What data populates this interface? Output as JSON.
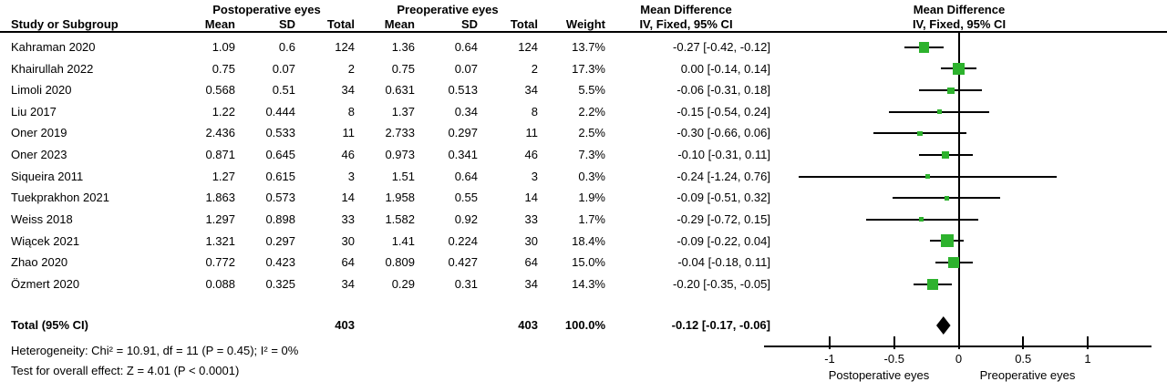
{
  "header": {
    "study_col": "Study or Subgroup",
    "group1": "Postoperative eyes",
    "group2": "Preoperative eyes",
    "mean": "Mean",
    "sd": "SD",
    "total": "Total",
    "weight": "Weight",
    "md_title": "Mean Difference",
    "md_sub": "IV, Fixed, 95% CI",
    "plot_title": "Mean Difference",
    "plot_sub": "IV, Fixed, 95% CI"
  },
  "studies": [
    {
      "name": "Kahraman 2020",
      "post_mean": "1.09",
      "post_sd": "0.6",
      "post_total": "124",
      "pre_mean": "1.36",
      "pre_sd": "0.64",
      "pre_total": "124",
      "weight": "13.7%",
      "md_text": "-0.27 [-0.42, -0.12]",
      "md": -0.27,
      "ci_low": -0.42,
      "ci_high": -0.12,
      "weight_value": 13.7
    },
    {
      "name": "Khairullah 2022",
      "post_mean": "0.75",
      "post_sd": "0.07",
      "post_total": "2",
      "pre_mean": "0.75",
      "pre_sd": "0.07",
      "pre_total": "2",
      "weight": "17.3%",
      "md_text": "0.00 [-0.14, 0.14]",
      "md": 0.0,
      "ci_low": -0.14,
      "ci_high": 0.14,
      "weight_value": 17.3
    },
    {
      "name": "Limoli 2020",
      "post_mean": "0.568",
      "post_sd": "0.51",
      "post_total": "34",
      "pre_mean": "0.631",
      "pre_sd": "0.513",
      "pre_total": "34",
      "weight": "5.5%",
      "md_text": "-0.06 [-0.31, 0.18]",
      "md": -0.06,
      "ci_low": -0.31,
      "ci_high": 0.18,
      "weight_value": 5.5
    },
    {
      "name": "Liu 2017",
      "post_mean": "1.22",
      "post_sd": "0.444",
      "post_total": "8",
      "pre_mean": "1.37",
      "pre_sd": "0.34",
      "pre_total": "8",
      "weight": "2.2%",
      "md_text": "-0.15 [-0.54, 0.24]",
      "md": -0.15,
      "ci_low": -0.54,
      "ci_high": 0.24,
      "weight_value": 2.2
    },
    {
      "name": "Oner 2019",
      "post_mean": "2.436",
      "post_sd": "0.533",
      "post_total": "11",
      "pre_mean": "2.733",
      "pre_sd": "0.297",
      "pre_total": "11",
      "weight": "2.5%",
      "md_text": "-0.30 [-0.66, 0.06]",
      "md": -0.3,
      "ci_low": -0.66,
      "ci_high": 0.06,
      "weight_value": 2.5
    },
    {
      "name": "Oner 2023",
      "post_mean": "0.871",
      "post_sd": "0.645",
      "post_total": "46",
      "pre_mean": "0.973",
      "pre_sd": "0.341",
      "pre_total": "46",
      "weight": "7.3%",
      "md_text": "-0.10 [-0.31, 0.11]",
      "md": -0.1,
      "ci_low": -0.31,
      "ci_high": 0.11,
      "weight_value": 7.3
    },
    {
      "name": "Siqueira 2011",
      "post_mean": "1.27",
      "post_sd": "0.615",
      "post_total": "3",
      "pre_mean": "1.51",
      "pre_sd": "0.64",
      "pre_total": "3",
      "weight": "0.3%",
      "md_text": "-0.24 [-1.24, 0.76]",
      "md": -0.24,
      "ci_low": -1.24,
      "ci_high": 0.76,
      "weight_value": 0.3
    },
    {
      "name": "Tuekprakhon 2021",
      "post_mean": "1.863",
      "post_sd": "0.573",
      "post_total": "14",
      "pre_mean": "1.958",
      "pre_sd": "0.55",
      "pre_total": "14",
      "weight": "1.9%",
      "md_text": "-0.09 [-0.51, 0.32]",
      "md": -0.09,
      "ci_low": -0.51,
      "ci_high": 0.32,
      "weight_value": 1.9
    },
    {
      "name": "Weiss 2018",
      "post_mean": "1.297",
      "post_sd": "0.898",
      "post_total": "33",
      "pre_mean": "1.582",
      "pre_sd": "0.92",
      "pre_total": "33",
      "weight": "1.7%",
      "md_text": "-0.29 [-0.72, 0.15]",
      "md": -0.29,
      "ci_low": -0.72,
      "ci_high": 0.15,
      "weight_value": 1.7
    },
    {
      "name": "Wiącek 2021",
      "post_mean": "1.321",
      "post_sd": "0.297",
      "post_total": "30",
      "pre_mean": "1.41",
      "pre_sd": "0.224",
      "pre_total": "30",
      "weight": "18.4%",
      "md_text": "-0.09 [-0.22, 0.04]",
      "md": -0.09,
      "ci_low": -0.22,
      "ci_high": 0.04,
      "weight_value": 18.4
    },
    {
      "name": "Zhao 2020",
      "post_mean": "0.772",
      "post_sd": "0.423",
      "post_total": "64",
      "pre_mean": "0.809",
      "pre_sd": "0.427",
      "pre_total": "64",
      "weight": "15.0%",
      "md_text": "-0.04 [-0.18, 0.11]",
      "md": -0.04,
      "ci_low": -0.18,
      "ci_high": 0.11,
      "weight_value": 15.0
    },
    {
      "name": "Özmert 2020",
      "post_mean": "0.088",
      "post_sd": "0.325",
      "post_total": "34",
      "pre_mean": "0.29",
      "pre_sd": "0.31",
      "pre_total": "34",
      "weight": "14.3%",
      "md_text": "-0.20 [-0.35, -0.05]",
      "md": -0.2,
      "ci_low": -0.35,
      "ci_high": -0.05,
      "weight_value": 14.3
    }
  ],
  "total": {
    "label": "Total (95% CI)",
    "post_total": "403",
    "pre_total": "403",
    "weight": "100.0%",
    "md_text": "-0.12 [-0.17, -0.06]",
    "md": -0.12,
    "ci_low": -0.17,
    "ci_high": -0.06
  },
  "footnotes": {
    "heterogeneity": "Heterogeneity: Chi² = 10.91, df = 11 (P = 0.45); I² = 0%",
    "overall": "Test for overall effect: Z = 4.01 (P < 0.0001)"
  },
  "axis": {
    "min": -1.5,
    "max": 1.5,
    "ticks": [
      -1,
      -0.5,
      0,
      0.5,
      1
    ],
    "tick_labels": [
      "-1",
      "-0.5",
      "0",
      "0.5",
      "1"
    ],
    "left_label": "Postoperative eyes",
    "right_label": "Preoperative eyes"
  },
  "colors": {
    "marker": "#2DB22D",
    "line": "#000000",
    "diamond": "#000000"
  },
  "chart_data": {
    "type": "scatter",
    "subtype": "forest-plot",
    "effect_measure": "Mean Difference, IV, Fixed, 95% CI",
    "categories": [
      "Kahraman 2020",
      "Khairullah 2022",
      "Limoli 2020",
      "Liu 2017",
      "Oner 2019",
      "Oner 2023",
      "Siqueira 2011",
      "Tuekprakhon 2021",
      "Weiss 2018",
      "Wiącek 2021",
      "Zhao 2020",
      "Özmert 2020"
    ],
    "series": [
      {
        "name": "Mean Difference",
        "values": [
          -0.27,
          0.0,
          -0.06,
          -0.15,
          -0.3,
          -0.1,
          -0.24,
          -0.09,
          -0.29,
          -0.09,
          -0.04,
          -0.2
        ]
      },
      {
        "name": "CI lower",
        "values": [
          -0.42,
          -0.14,
          -0.31,
          -0.54,
          -0.66,
          -0.31,
          -1.24,
          -0.51,
          -0.72,
          -0.22,
          -0.18,
          -0.35
        ]
      },
      {
        "name": "CI upper",
        "values": [
          -0.12,
          0.14,
          0.18,
          0.24,
          0.06,
          0.11,
          0.76,
          0.32,
          0.15,
          0.04,
          0.11,
          -0.05
        ]
      },
      {
        "name": "Weight %",
        "values": [
          13.7,
          17.3,
          5.5,
          2.2,
          2.5,
          7.3,
          0.3,
          1.9,
          1.7,
          18.4,
          15.0,
          14.3
        ]
      },
      {
        "name": "Postoperative mean",
        "values": [
          1.09,
          0.75,
          0.568,
          1.22,
          2.436,
          0.871,
          1.27,
          1.863,
          1.297,
          1.321,
          0.772,
          0.088
        ]
      },
      {
        "name": "Postoperative SD",
        "values": [
          0.6,
          0.07,
          0.51,
          0.444,
          0.533,
          0.645,
          0.615,
          0.573,
          0.898,
          0.297,
          0.423,
          0.325
        ]
      },
      {
        "name": "Postoperative total",
        "values": [
          124,
          2,
          34,
          8,
          11,
          46,
          3,
          14,
          33,
          30,
          64,
          34
        ]
      },
      {
        "name": "Preoperative mean",
        "values": [
          1.36,
          0.75,
          0.631,
          1.37,
          2.733,
          0.973,
          1.51,
          1.958,
          1.582,
          1.41,
          0.809,
          0.29
        ]
      },
      {
        "name": "Preoperative SD",
        "values": [
          0.64,
          0.07,
          0.513,
          0.34,
          0.297,
          0.341,
          0.64,
          0.55,
          0.92,
          0.224,
          0.427,
          0.31
        ]
      },
      {
        "name": "Preoperative total",
        "values": [
          124,
          2,
          34,
          8,
          11,
          46,
          3,
          14,
          33,
          30,
          64,
          34
        ]
      }
    ],
    "pooled": {
      "label": "Total (95% CI)",
      "estimate": -0.12,
      "ci": [
        -0.17,
        -0.06
      ],
      "total_post": 403,
      "total_pre": 403,
      "weight": 100.0
    },
    "xlim": [
      -1.5,
      1.5
    ],
    "x_ticks": [
      -1,
      -0.5,
      0,
      0.5,
      1
    ],
    "xlabel_left": "Postoperative eyes",
    "xlabel_right": "Preoperative eyes",
    "grid": false,
    "legend": false
  }
}
